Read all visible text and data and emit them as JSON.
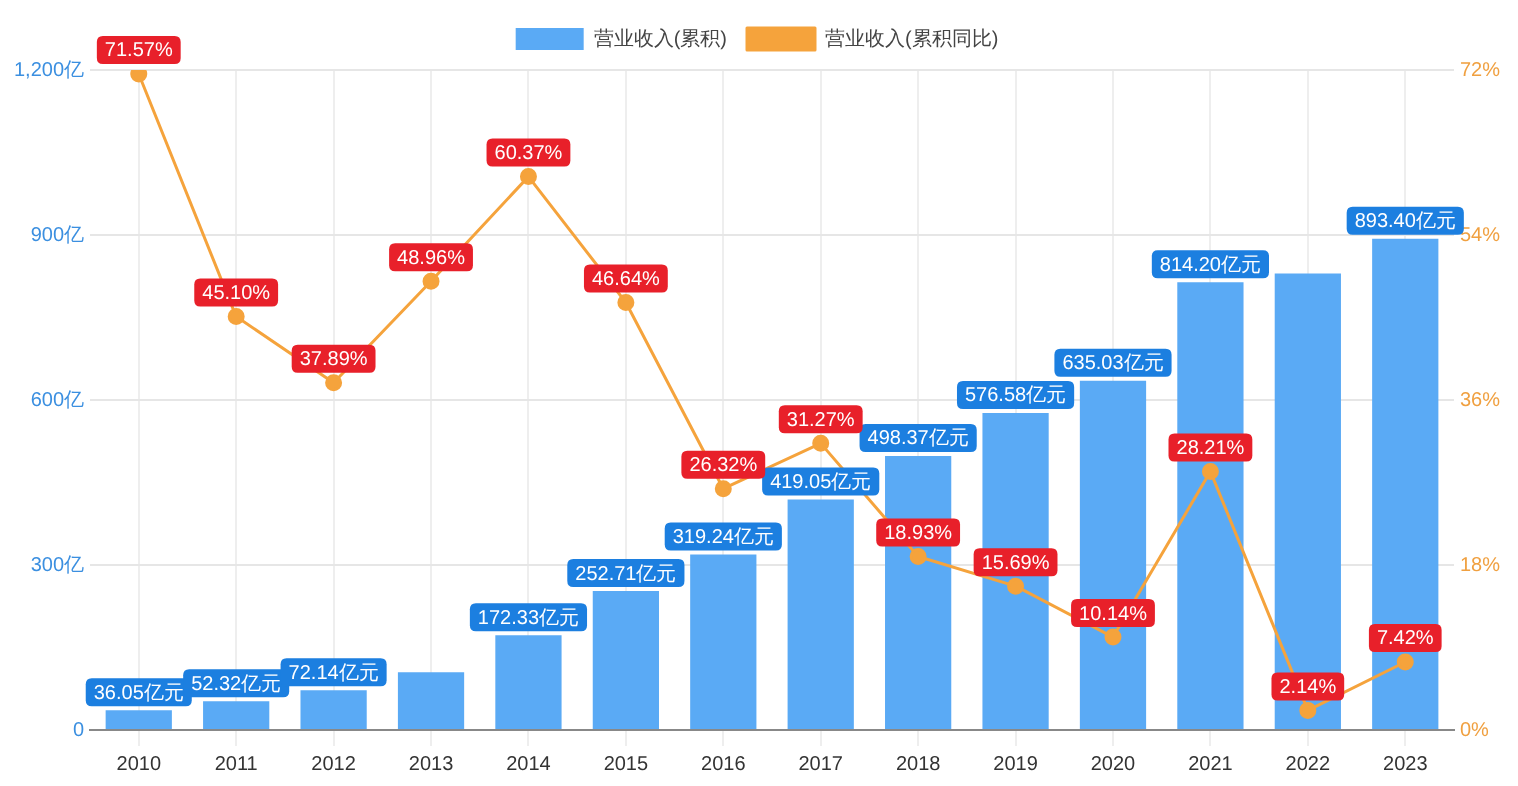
{
  "chart_data": {
    "type": "bar",
    "categories": [
      "2010",
      "2011",
      "2012",
      "2013",
      "2014",
      "2015",
      "2016",
      "2017",
      "2018",
      "2019",
      "2020",
      "2021",
      "2022",
      "2023"
    ],
    "series": [
      {
        "name": "营业收入(累积)",
        "color": "#5aaaf5",
        "values": [
          36.05,
          52.32,
          72.14,
          105,
          172.33,
          252.71,
          319.24,
          419.05,
          498.37,
          576.58,
          635.03,
          814.2,
          830,
          893.4
        ],
        "value_labels": [
          "36.05亿元",
          "52.32亿元",
          "72.14亿元",
          null,
          "172.33亿元",
          "252.71亿元",
          "319.24亿元",
          "419.05亿元",
          "498.37亿元",
          "576.58亿元",
          "635.03亿元",
          "814.20亿元",
          null,
          "893.40亿元"
        ]
      },
      {
        "name": "营业收入(累积同比)",
        "type": "line",
        "axis": "y2",
        "color": "#f5a33c",
        "values": [
          71.57,
          45.1,
          37.89,
          48.96,
          60.37,
          46.64,
          26.32,
          31.27,
          18.93,
          15.69,
          10.14,
          28.21,
          2.14,
          7.42
        ],
        "value_labels": [
          "71.57%",
          "45.10%",
          "37.89%",
          "48.96%",
          "60.37%",
          "46.64%",
          "26.32%",
          "31.27%",
          "18.93%",
          "15.69%",
          "10.14%",
          "28.21%",
          "2.14%",
          "7.42%"
        ]
      }
    ],
    "ylim": [
      0,
      1200
    ],
    "yticks": [
      0,
      {
        "value": 300,
        "label": "300亿"
      },
      {
        "value": 600,
        "label": "600亿"
      },
      {
        "value": 900,
        "label": "900亿"
      },
      {
        "value": 1200,
        "label": "1,200亿"
      }
    ],
    "y2lim": [
      0,
      72
    ],
    "y2ticks": [
      {
        "value": 0,
        "label": "0%"
      },
      {
        "value": 18,
        "label": "18%"
      },
      {
        "value": 36,
        "label": "36%"
      },
      {
        "value": 54,
        "label": "54%"
      },
      {
        "value": 72,
        "label": "72%"
      }
    ],
    "grid": true,
    "legend": "top",
    "marker": "circle",
    "line_style": "solid"
  }
}
